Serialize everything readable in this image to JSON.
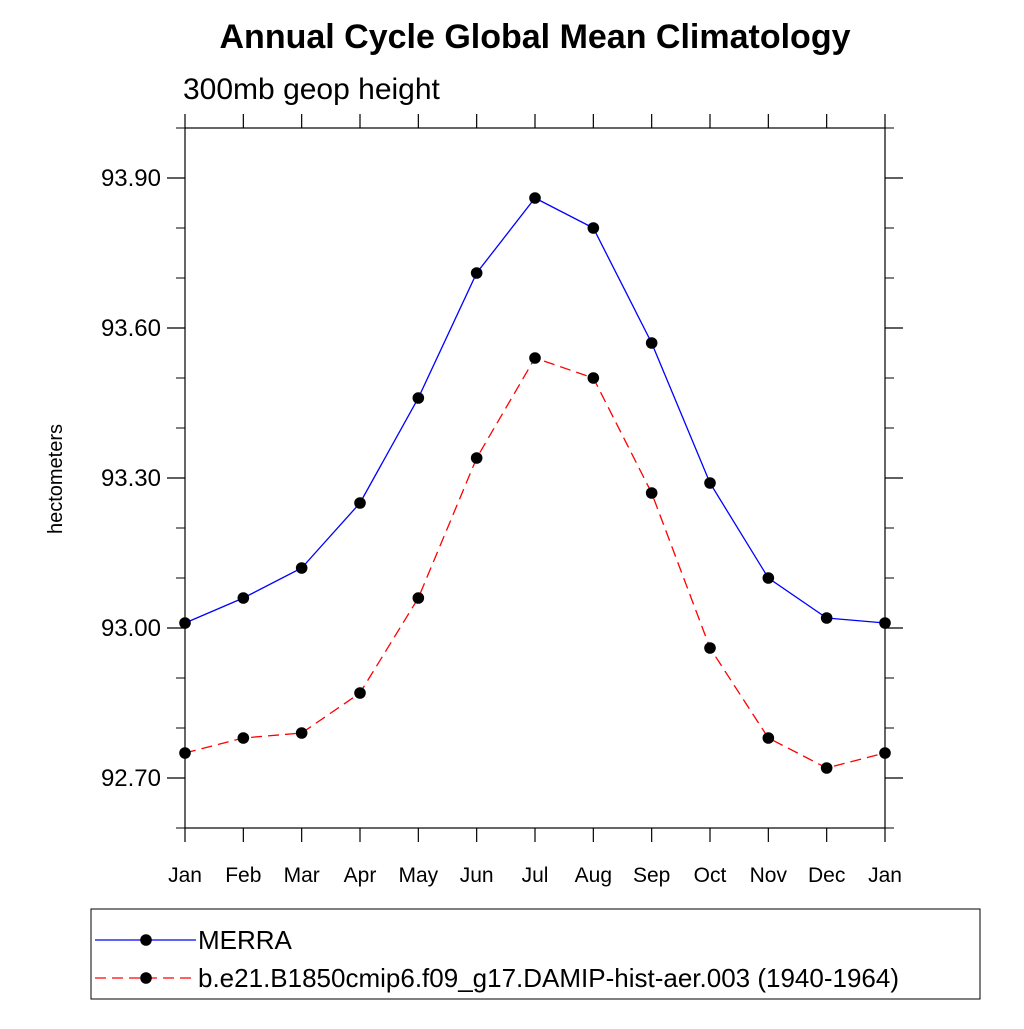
{
  "chart_data": {
    "type": "line",
    "title": "Annual Cycle Global Mean Climatology",
    "subtitle": "300mb geop height",
    "xlabel": "",
    "ylabel": "hectometers",
    "categories": [
      "Jan",
      "Feb",
      "Mar",
      "Apr",
      "May",
      "Jun",
      "Jul",
      "Aug",
      "Sep",
      "Oct",
      "Nov",
      "Dec",
      "Jan"
    ],
    "ylim": [
      92.6,
      94.0
    ],
    "yticks": [
      92.7,
      93.0,
      93.3,
      93.6,
      93.9
    ],
    "ytick_labels": [
      "92.70",
      "93.00",
      "93.30",
      "93.60",
      "93.90"
    ],
    "grid": false,
    "legend_position": "bottom",
    "series": [
      {
        "name": "MERRA",
        "color": "#0000ff",
        "line_style": "solid",
        "marker": "filled-circle",
        "values": [
          93.01,
          93.06,
          93.12,
          93.25,
          93.46,
          93.71,
          93.86,
          93.8,
          93.57,
          93.29,
          93.1,
          93.02,
          93.01
        ]
      },
      {
        "name": "b.e21.B1850cmip6.f09_g17.DAMIP-hist-aer.003 (1940-1964)",
        "color": "#ff0000",
        "line_style": "dashed",
        "marker": "filled-circle",
        "values": [
          92.75,
          92.78,
          92.79,
          92.87,
          93.06,
          93.34,
          93.54,
          93.5,
          93.27,
          92.96,
          92.78,
          92.72,
          92.75
        ]
      }
    ]
  }
}
